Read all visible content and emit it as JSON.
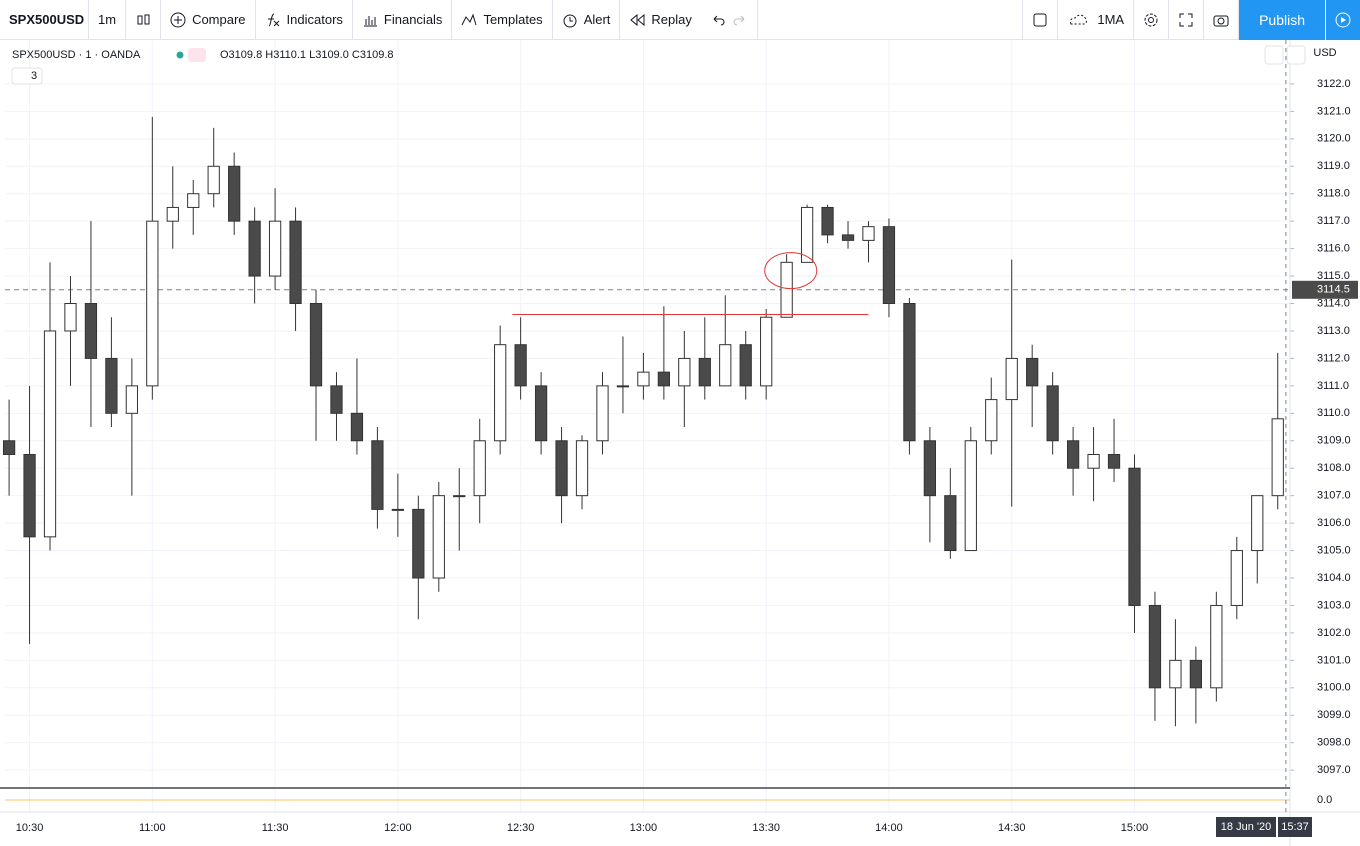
{
  "toolbar": {
    "symbol": "SPX500USD",
    "interval": "1m",
    "compare": "Compare",
    "indicators": "Indicators",
    "financials": "Financials",
    "templates": "Templates",
    "alert": "Alert",
    "replay": "Replay",
    "layout": "1MA",
    "publish": "Publish"
  },
  "legend": {
    "title": "SPX500USD · 1 · OANDA",
    "ohlc": "O3109.8 H3110.1 L3109.0 C3109.8",
    "collapsed_count": "3",
    "currency": "USD"
  },
  "chart_data": {
    "type": "candlestick",
    "x": [
      "10:25",
      "10:30",
      "10:35",
      "10:40",
      "10:45",
      "10:50",
      "10:55",
      "11:00",
      "11:05",
      "11:10",
      "11:15",
      "11:20",
      "11:25",
      "11:30",
      "11:35",
      "11:40",
      "11:45",
      "11:50",
      "11:55",
      "12:00",
      "12:05",
      "12:10",
      "12:15",
      "12:20",
      "12:25",
      "12:30",
      "12:35",
      "12:40",
      "12:45",
      "12:50",
      "12:55",
      "13:00",
      "13:05",
      "13:10",
      "13:15",
      "13:20",
      "13:25",
      "13:30",
      "13:35",
      "13:40",
      "13:45",
      "13:50",
      "13:55",
      "14:00",
      "14:05",
      "14:10",
      "14:15",
      "14:20",
      "14:25",
      "14:30",
      "14:35",
      "14:40",
      "14:45",
      "14:50",
      "14:55",
      "15:00",
      "15:05",
      "15:10",
      "15:15",
      "15:20",
      "15:25",
      "15:30",
      "15:35"
    ],
    "open": [
      3109,
      3108.5,
      3105.5,
      3113,
      3114,
      3112,
      3110,
      3111,
      3117,
      3117.5,
      3118,
      3119,
      3117,
      3115,
      3117,
      3114,
      3111,
      3110,
      3109,
      3106.5,
      3106.5,
      3104,
      3107,
      3107,
      3109,
      3112.5,
      3111,
      3109,
      3107,
      3109,
      3111,
      3111,
      3111.5,
      3111,
      3112,
      3111,
      3112.5,
      3111,
      3113.5,
      3115.5,
      3117.5,
      3116.5,
      3116.3,
      3116.8,
      3114,
      3109,
      3107,
      3105,
      3109,
      3110.5,
      3112,
      3111,
      3109,
      3108,
      3108.5,
      3108,
      3103,
      3100,
      3101,
      3100,
      3103,
      3105,
      3107
    ],
    "high": [
      3110.5,
      3111,
      3115.5,
      3115,
      3117,
      3113.5,
      3112,
      3120.8,
      3119,
      3118.5,
      3120.4,
      3119.5,
      3117.5,
      3118.2,
      3117.5,
      3114.5,
      3111.5,
      3112,
      3109.5,
      3107.8,
      3107,
      3107.5,
      3108,
      3109.8,
      3113.2,
      3113.5,
      3111.5,
      3109.5,
      3109.2,
      3111.5,
      3112.8,
      3112.2,
      3113.9,
      3113,
      3113.5,
      3114.3,
      3113,
      3113.8,
      3115.8,
      3117.6,
      3117.6,
      3117,
      3117,
      3117.1,
      3114.2,
      3109.5,
      3108,
      3109.5,
      3111.3,
      3115.6,
      3112.5,
      3111.5,
      3109.5,
      3109.5,
      3109.8,
      3108.5,
      3103.5,
      3102.5,
      3101.5,
      3103.5,
      3105.5,
      3107,
      3112.2
    ],
    "low": [
      3107,
      3101.6,
      3105,
      3111,
      3109.5,
      3109.5,
      3107,
      3110.5,
      3116,
      3116.5,
      3117.5,
      3116.5,
      3114,
      3114.5,
      3113,
      3109,
      3109,
      3108.5,
      3105.8,
      3105.5,
      3102.5,
      3103.5,
      3105,
      3106,
      3108.5,
      3110.5,
      3108.5,
      3106,
      3106.5,
      3108.5,
      3110,
      3110.5,
      3110.5,
      3109.5,
      3110.5,
      3111,
      3110.5,
      3110.5,
      3113.5,
      3115.5,
      3116.2,
      3116,
      3115.5,
      3113.5,
      3108.5,
      3105.3,
      3104.7,
      3105,
      3108.5,
      3106.6,
      3109.5,
      3108.5,
      3107,
      3106.8,
      3107.5,
      3102,
      3098.8,
      3098.6,
      3098.7,
      3099.5,
      3102.5,
      3103.8,
      3106.5
    ],
    "close": [
      3108.5,
      3105.5,
      3113,
      3114,
      3112,
      3110,
      3111,
      3117,
      3117.5,
      3118,
      3119,
      3117,
      3115,
      3117,
      3114,
      3111,
      3110,
      3109,
      3106.5,
      3106.5,
      3104,
      3107,
      3107,
      3109,
      3112.5,
      3111,
      3109,
      3107,
      3109,
      3111,
      3111,
      3111.5,
      3111,
      3112,
      3111,
      3112.5,
      3111,
      3113.5,
      3115.5,
      3117.5,
      3116.5,
      3116.3,
      3116.8,
      3114,
      3109,
      3107,
      3105,
      3109,
      3110.5,
      3112,
      3111,
      3109,
      3108,
      3108.5,
      3108,
      3103,
      3100,
      3101,
      3100,
      3103,
      3105,
      3107,
      3109.8
    ],
    "ylim": [
      3096.35,
      3123.6
    ],
    "yticks": [
      {
        "value": 3097,
        "label": "3097.0"
      },
      {
        "value": 3098,
        "label": "3098.0"
      },
      {
        "value": 3099,
        "label": "3099.0"
      },
      {
        "value": 3100,
        "label": "3100.0"
      },
      {
        "value": 3101,
        "label": "3101.0"
      },
      {
        "value": 3102,
        "label": "3102.0"
      },
      {
        "value": 3103,
        "label": "3103.0"
      },
      {
        "value": 3104,
        "label": "3104.0"
      },
      {
        "value": 3105,
        "label": "3105.0"
      },
      {
        "value": 3106,
        "label": "3106.0"
      },
      {
        "value": 3107,
        "label": "3107.0"
      },
      {
        "value": 3108,
        "label": "3108.0"
      },
      {
        "value": 3109,
        "label": "3109.0"
      },
      {
        "value": 3110,
        "label": "3110.0"
      },
      {
        "value": 3111,
        "label": "3111.0"
      },
      {
        "value": 3112,
        "label": "3112.0"
      },
      {
        "value": 3113,
        "label": "3113.0"
      },
      {
        "value": 3114,
        "label": "3114.0"
      },
      {
        "value": 3115,
        "label": "3115.0"
      },
      {
        "value": 3116,
        "label": "3116.0"
      },
      {
        "value": 3117,
        "label": "3117.0"
      },
      {
        "value": 3118,
        "label": "3118.0"
      },
      {
        "value": 3119,
        "label": "3119.0"
      },
      {
        "value": 3120,
        "label": "3120.0"
      },
      {
        "value": 3121,
        "label": "3121.0"
      },
      {
        "value": 3122,
        "label": "3122.0"
      }
    ],
    "xlim": [
      "10:24",
      "15:38"
    ],
    "xticks": [
      "10:30",
      "11:00",
      "11:30",
      "12:00",
      "12:30",
      "13:00",
      "13:30",
      "14:00",
      "14:30",
      "15:00"
    ],
    "grid": true,
    "up_color": "#ffffff",
    "down_color": "#4a4a4a",
    "price_line": 3114.5,
    "trend_line": {
      "value": 3113.6,
      "from": "12:28",
      "to": "13:55",
      "color": "#e53935"
    },
    "highlight": {
      "x": "13:36",
      "y": 3115.2,
      "color": "#e53935"
    },
    "cursor_date": "18 Jun '20",
    "cursor_time": "15:37",
    "oscillator_label": "0.0"
  }
}
